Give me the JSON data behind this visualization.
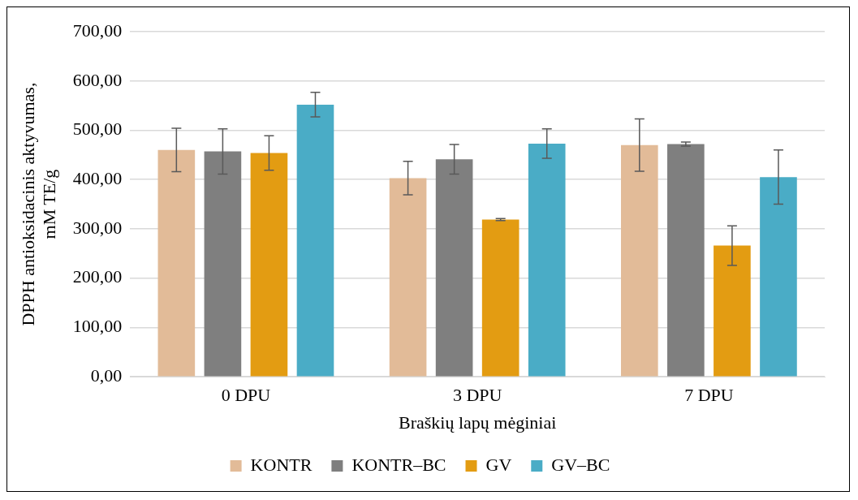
{
  "chart_data": {
    "type": "bar",
    "xlabel": "Braškių lapų mėginiai",
    "ylabel": "DPPH antioksidacinis aktyvumas, mM TE/g",
    "categories": [
      "0 DPU",
      "3 DPU",
      "7 DPU"
    ],
    "series": [
      {
        "name": "KONTR",
        "color": "#e2bb98",
        "values": [
          460,
          403,
          470
        ],
        "errors": [
          44,
          34,
          53
        ]
      },
      {
        "name": "KONTR–BC",
        "color": "#7f7f7f",
        "values": [
          457,
          441,
          472
        ],
        "errors": [
          46,
          30,
          4
        ]
      },
      {
        "name": "GV",
        "color": "#e39c12",
        "values": [
          454,
          319,
          266
        ],
        "errors": [
          35,
          2,
          40
        ]
      },
      {
        "name": "GV–BC",
        "color": "#4aacc6",
        "values": [
          552,
          473,
          405
        ],
        "errors": [
          25,
          30,
          55
        ]
      }
    ],
    "ylim": [
      0,
      700
    ],
    "yticks": [
      {
        "value": 0,
        "label": "0,00"
      },
      {
        "value": 100,
        "label": "100,00"
      },
      {
        "value": 200,
        "label": "200,00"
      },
      {
        "value": 300,
        "label": "300,00"
      },
      {
        "value": 400,
        "label": "400,00"
      },
      {
        "value": 500,
        "label": "500,00"
      },
      {
        "value": 600,
        "label": "600,00"
      },
      {
        "value": 700,
        "label": "700,00"
      }
    ],
    "grid": "y",
    "legend": "bottom"
  }
}
